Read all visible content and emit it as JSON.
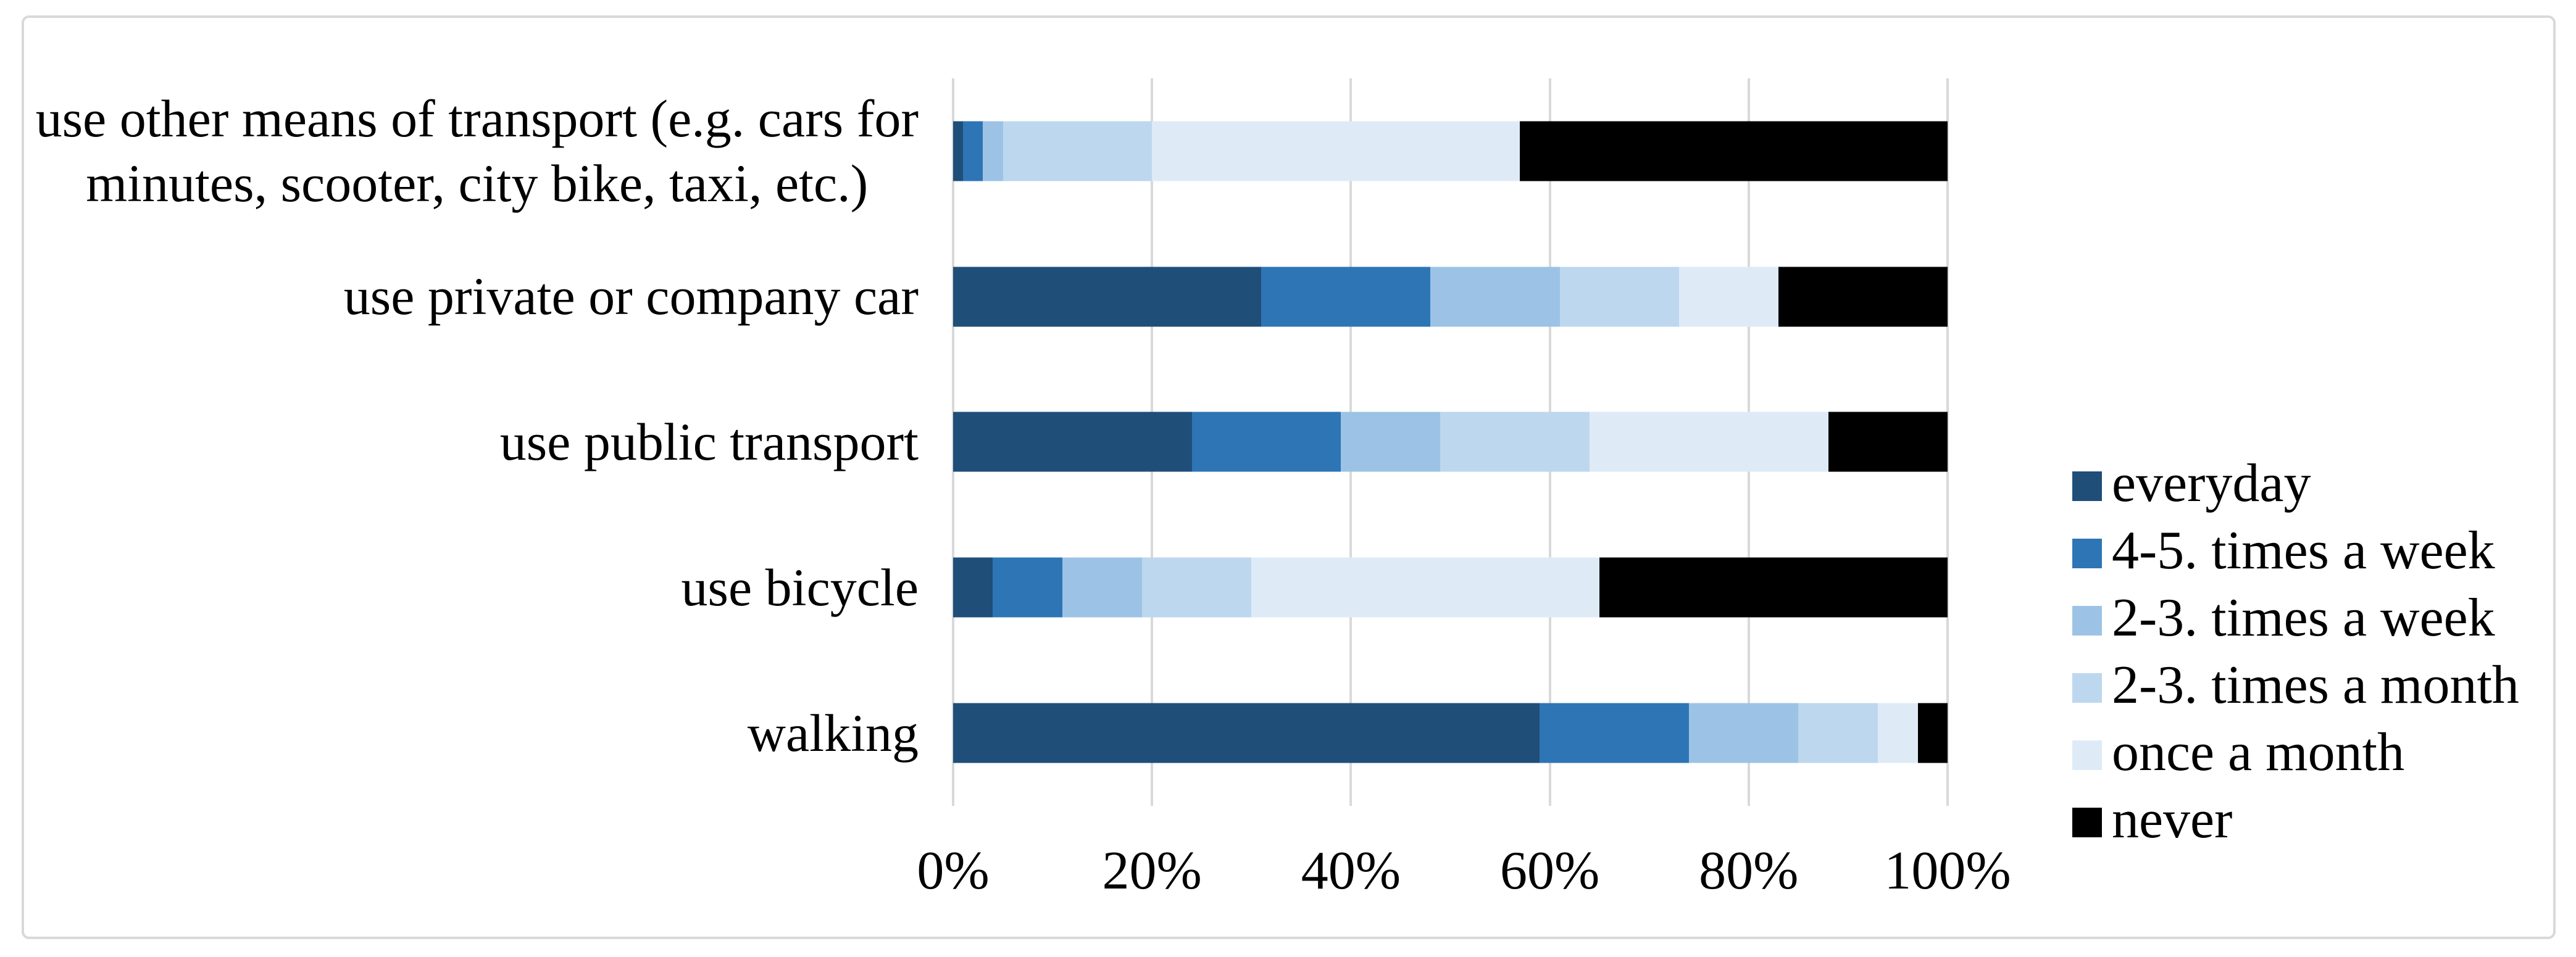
{
  "figure": {
    "background": "#FFFFFF",
    "border_color": "#D9D9D9",
    "text_color": "#000000"
  },
  "chart_data": {
    "type": "bar",
    "orientation": "horizontal",
    "stacked": true,
    "unit": "percent",
    "title": "",
    "xlabel": "",
    "ylabel": "",
    "xlim": [
      0,
      100
    ],
    "x_ticks": [
      "0%",
      "20%",
      "40%",
      "60%",
      "80%",
      "100%"
    ],
    "x_tick_values": [
      0,
      20,
      40,
      60,
      80,
      100
    ],
    "grid": "vertical",
    "gridline_color": "#D9D9D9",
    "legend_position": "right",
    "categories": [
      "use other means of transport (e.g. cars for minutes, scooter, city bike, taxi, etc.)",
      "use private or company car",
      "use public transport",
      "use bicycle",
      "walking"
    ],
    "category_label_lines": [
      [
        "use other means of transport (e.g. cars for",
        "minutes, scooter, city bike, taxi, etc.)"
      ],
      [
        "use private or company car"
      ],
      [
        "use public transport"
      ],
      [
        "use bicycle"
      ],
      [
        "walking"
      ]
    ],
    "series": [
      {
        "name": "everyday",
        "color": "#1F4E79",
        "values": [
          1,
          31,
          24,
          4,
          59
        ]
      },
      {
        "name": "4-5. times a week",
        "color": "#2E75B6",
        "values": [
          2,
          17,
          15,
          7,
          15
        ]
      },
      {
        "name": "2-3. times a week",
        "color": "#9CC3E5",
        "values": [
          2,
          13,
          10,
          8,
          11
        ]
      },
      {
        "name": "2-3. times a month",
        "color": "#BDD7EE",
        "values": [
          15,
          12,
          15,
          11,
          8
        ]
      },
      {
        "name": "once a month",
        "color": "#DEEBF7",
        "values": [
          37,
          10,
          24,
          35,
          4
        ]
      },
      {
        "name": "never",
        "color": "#000000",
        "values": [
          43,
          17,
          12,
          35,
          3
        ]
      }
    ]
  }
}
